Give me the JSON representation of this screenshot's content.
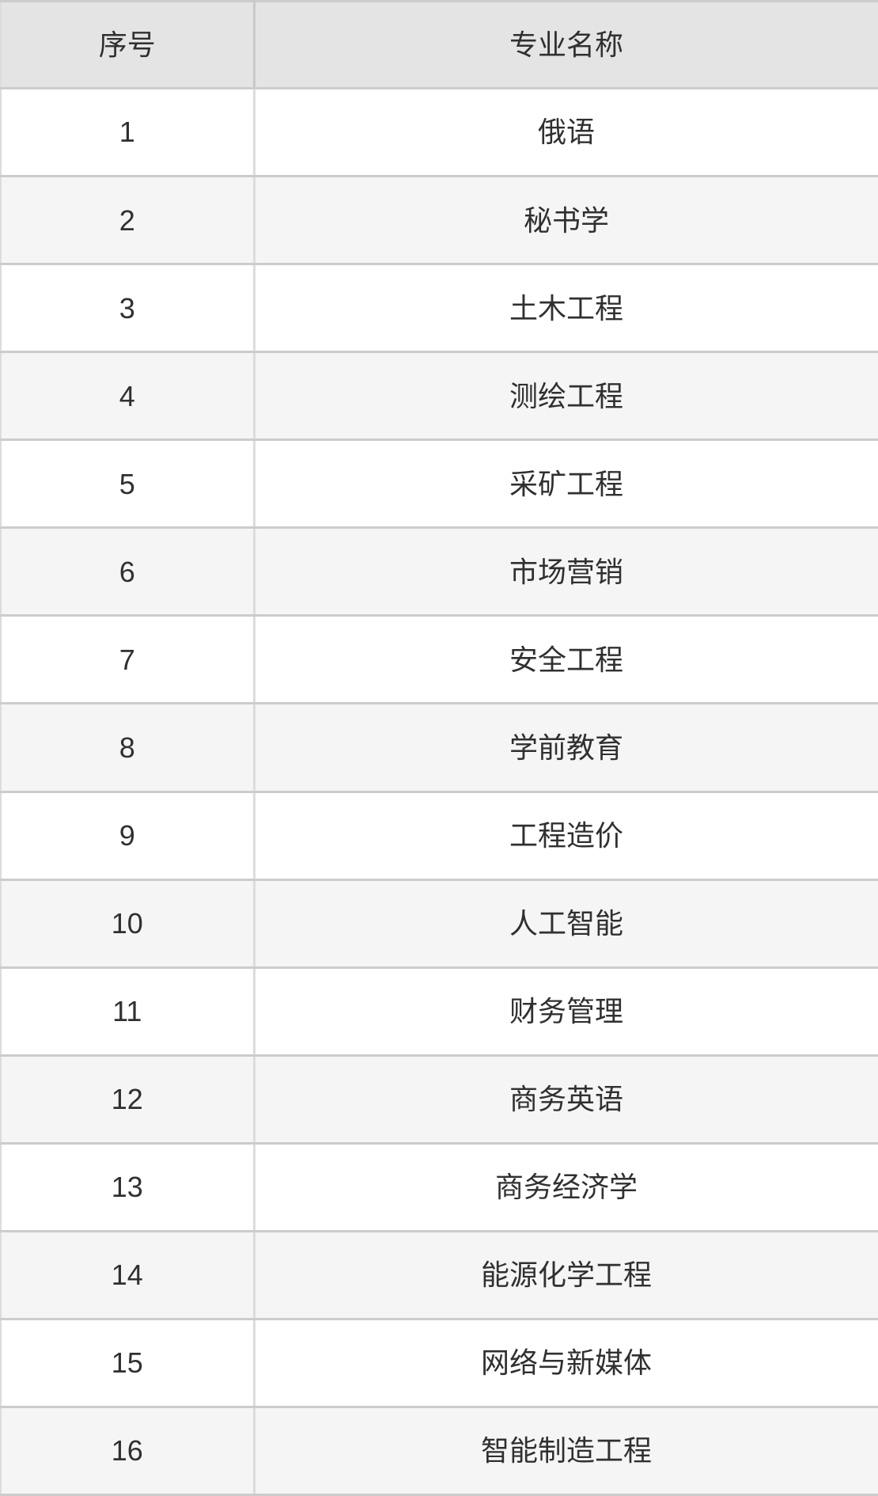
{
  "table": {
    "headers": {
      "index": "序号",
      "major": "专业名称"
    },
    "rows": [
      {
        "index": "1",
        "major": "俄语"
      },
      {
        "index": "2",
        "major": "秘书学"
      },
      {
        "index": "3",
        "major": "土木工程"
      },
      {
        "index": "4",
        "major": "测绘工程"
      },
      {
        "index": "5",
        "major": "采矿工程"
      },
      {
        "index": "6",
        "major": "市场营销"
      },
      {
        "index": "7",
        "major": "安全工程"
      },
      {
        "index": "8",
        "major": "学前教育"
      },
      {
        "index": "9",
        "major": "工程造价"
      },
      {
        "index": "10",
        "major": "人工智能"
      },
      {
        "index": "11",
        "major": "财务管理"
      },
      {
        "index": "12",
        "major": "商务英语"
      },
      {
        "index": "13",
        "major": "商务经济学"
      },
      {
        "index": "14",
        "major": "能源化学工程"
      },
      {
        "index": "15",
        "major": "网络与新媒体"
      },
      {
        "index": "16",
        "major": "智能制造工程"
      }
    ]
  },
  "colors": {
    "header_bg": "#e4e4e4",
    "row_bg": "#ffffff",
    "row_alt_bg": "#f5f5f5",
    "border_horizontal": "#cccccc",
    "border_vertical": "#dcdcdc",
    "border_vertical_header": "#c9c9c9",
    "text": "#303030"
  }
}
